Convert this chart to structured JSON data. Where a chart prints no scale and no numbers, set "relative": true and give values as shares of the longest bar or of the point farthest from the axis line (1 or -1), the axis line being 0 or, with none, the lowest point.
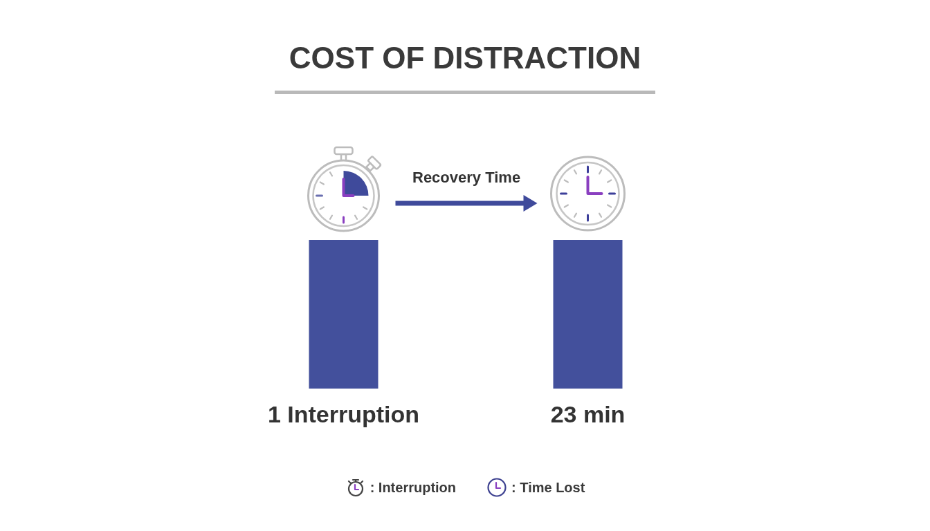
{
  "chart_data": {
    "type": "bar",
    "title": "COST OF DISTRACTION",
    "categories": [
      "1 Interruption",
      "23 min"
    ],
    "values": [
      1,
      1
    ],
    "relative": true,
    "color": "#43509c",
    "annotations": [
      "Recovery Time",
      ": Interruption",
      ": Time Lost"
    ]
  }
}
